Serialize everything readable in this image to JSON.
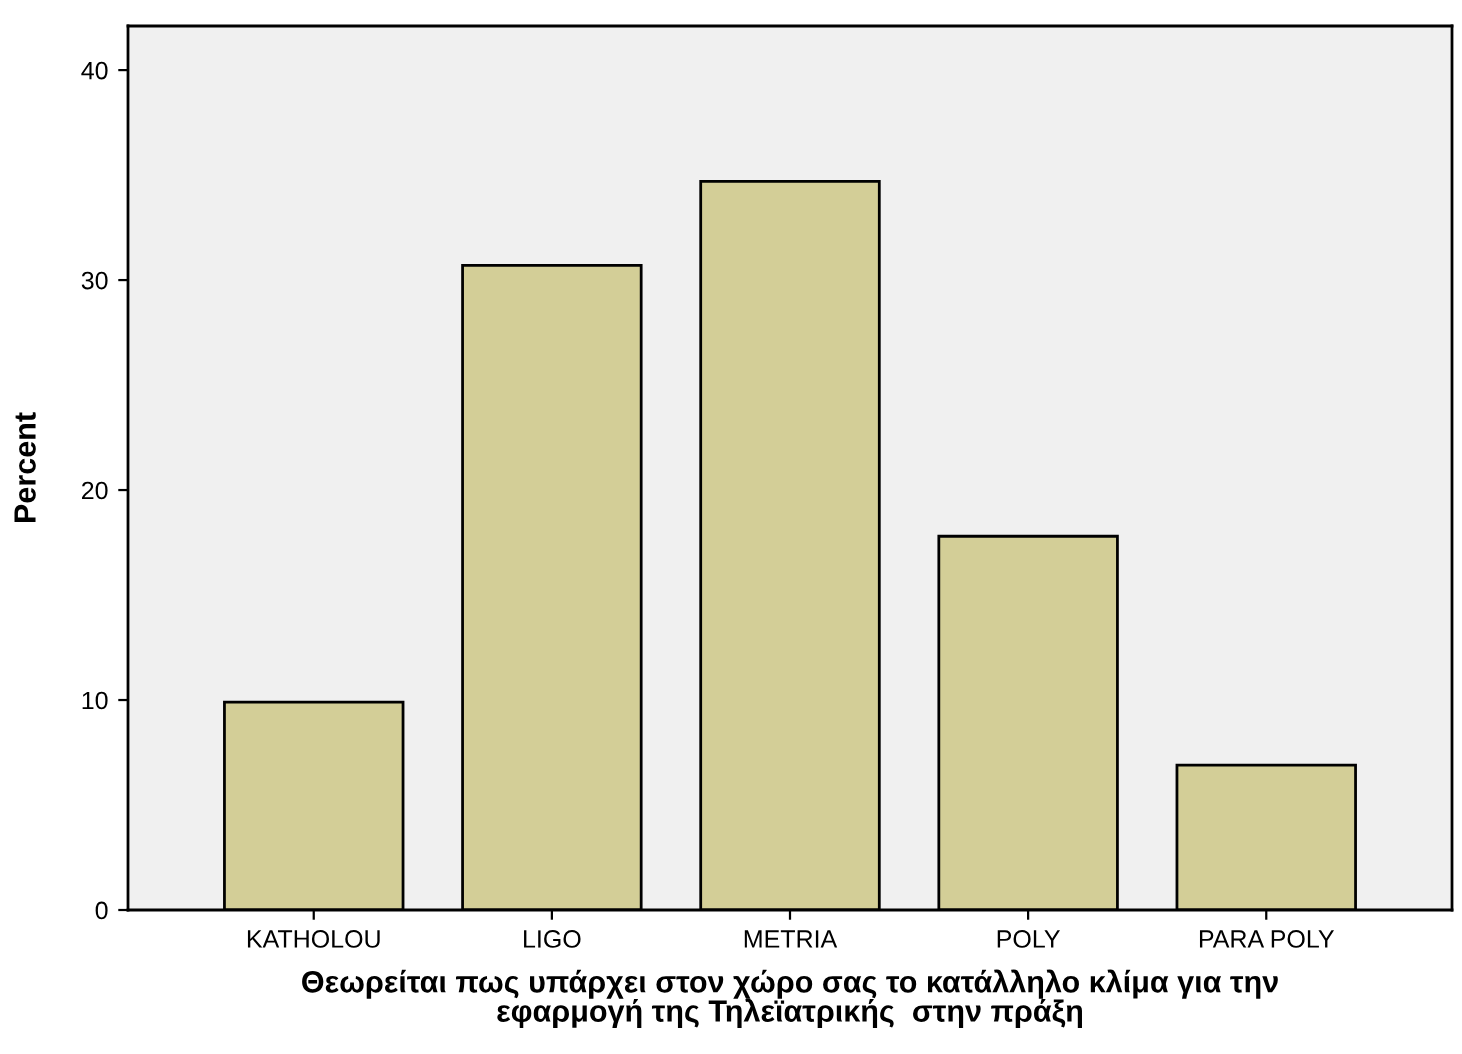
{
  "chart_data": {
    "type": "bar",
    "xlabel": "Θεωρείται πως υπάρχει στον χώρο σας το κατάλληλο κλίμα για την\nεφαρμογή της Τηλεϊατρικής  στην πράξη",
    "ylabel": "Percent",
    "categories": [
      "KATHOLOU",
      "LIGO",
      "METRIA",
      "POLY",
      "PARA POLY"
    ],
    "values": [
      9.9,
      30.7,
      34.7,
      17.8,
      6.9
    ],
    "color": "#d3ce97",
    "ylim": [
      0,
      42.1
    ],
    "yticks": [
      0,
      10,
      20,
      30,
      40
    ],
    "grid": false
  }
}
